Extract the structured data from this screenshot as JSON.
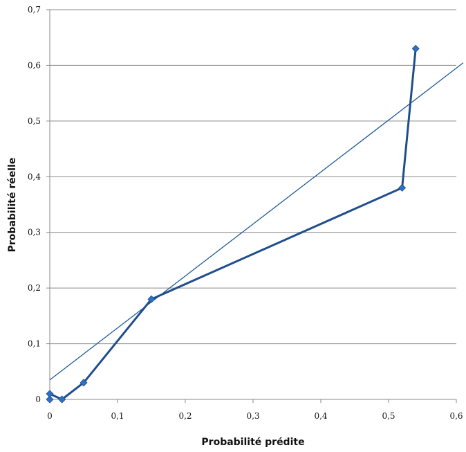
{
  "chart_data": {
    "type": "line",
    "xlabel": "Probabilité prédite",
    "ylabel": "Probabilité réelle",
    "xlim": [
      0,
      0.6
    ],
    "ylim": [
      0,
      0.7
    ],
    "x_ticks": [
      0,
      0.1,
      0.2,
      0.3,
      0.4,
      0.5,
      0.6
    ],
    "x_tick_labels": [
      "0",
      "0,1",
      "0,2",
      "0,3",
      "0,4",
      "0,5",
      "0,6"
    ],
    "y_ticks": [
      0,
      0.1,
      0.2,
      0.3,
      0.4,
      0.5,
      0.6,
      0.7
    ],
    "y_tick_labels": [
      "0",
      "0,1",
      "0,2",
      "0,3",
      "0,4",
      "0,5",
      "0,6",
      "0,7"
    ],
    "grid": "horizontal",
    "legend": "none",
    "series": [
      {
        "points": [
          {
            "x": 0.0,
            "y": 0.0
          },
          {
            "x": 0.0,
            "y": 0.01
          },
          {
            "x": 0.018,
            "y": 0.0
          },
          {
            "x": 0.05,
            "y": 0.03
          },
          {
            "x": 0.15,
            "y": 0.18
          },
          {
            "x": 0.52,
            "y": 0.38
          },
          {
            "x": 0.54,
            "y": 0.63
          }
        ],
        "color": "#1f4e8c",
        "marker_color": "#2e6fc7",
        "marker": "diamond"
      }
    ],
    "trendline": {
      "start": {
        "x": 0.0,
        "y": 0.035
      },
      "end": {
        "x": 0.6,
        "y": 0.595
      },
      "color": "#1f5a96"
    }
  }
}
